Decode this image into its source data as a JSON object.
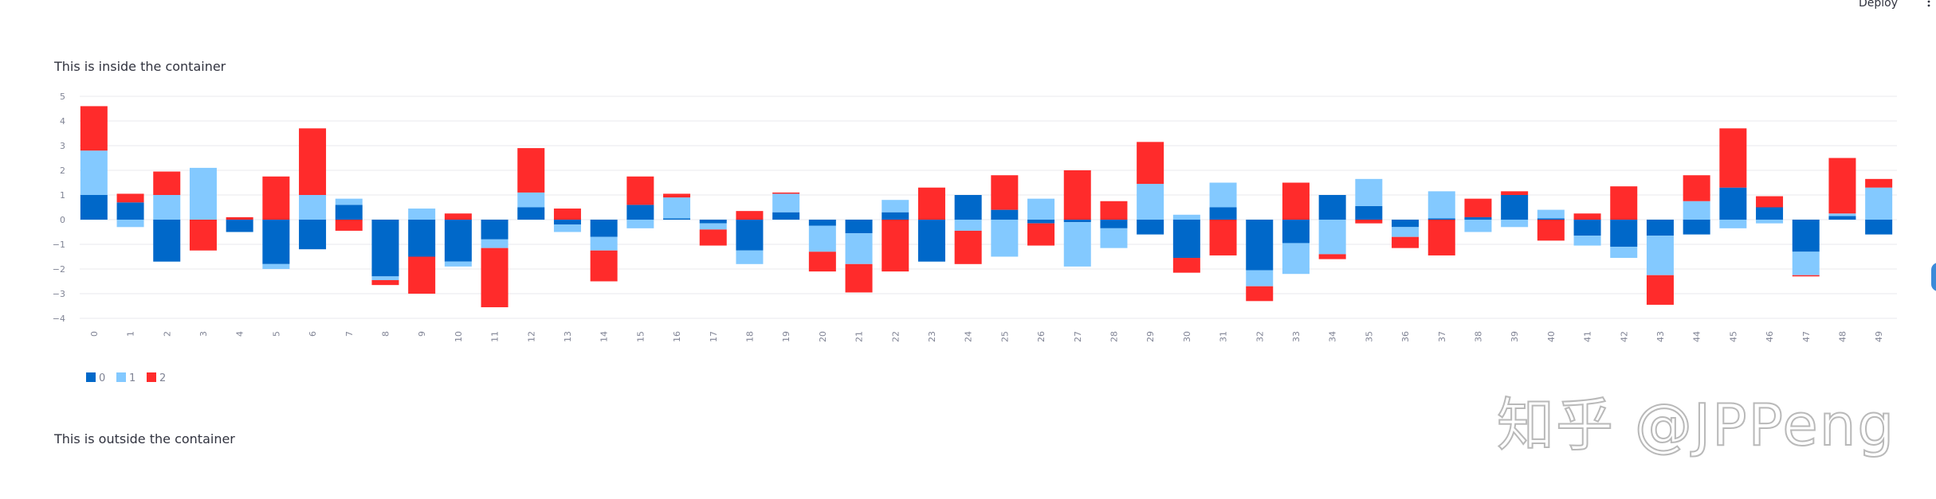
{
  "header": {
    "deploy_label": "Deploy"
  },
  "texts": {
    "inside": "This is inside the container",
    "outside": "This is outside the container"
  },
  "watermark": "知乎 @JPPeng",
  "colors": {
    "series0": "#0068c9",
    "series1": "#83c9ff",
    "series2": "#ff2b2b",
    "grid": "#eaeaee",
    "text": "#31333f",
    "tick": "#808495"
  },
  "chart_data": {
    "type": "bar",
    "stacked": true,
    "categories": [
      "0",
      "1",
      "2",
      "3",
      "4",
      "5",
      "6",
      "7",
      "8",
      "9",
      "10",
      "11",
      "12",
      "13",
      "14",
      "15",
      "16",
      "17",
      "18",
      "19",
      "20",
      "21",
      "22",
      "23",
      "24",
      "25",
      "26",
      "27",
      "28",
      "29",
      "30",
      "31",
      "32",
      "33",
      "34",
      "35",
      "36",
      "37",
      "38",
      "39",
      "40",
      "41",
      "42",
      "43",
      "44",
      "45",
      "46",
      "47",
      "48",
      "49"
    ],
    "y_ticks": [
      5,
      4,
      3,
      2,
      1,
      0,
      -1,
      -2,
      -3,
      -4
    ],
    "ylim": [
      -4,
      5
    ],
    "grid": true,
    "legend_position": "bottom-left",
    "series": [
      {
        "name": "0",
        "color": "#0068c9",
        "values": [
          1.0,
          0.7,
          -1.7,
          0.0,
          -0.5,
          -1.8,
          -1.2,
          0.6,
          -2.3,
          -1.5,
          -1.7,
          -0.8,
          0.5,
          -0.2,
          -0.7,
          0.6,
          0.05,
          -0.15,
          -1.25,
          0.3,
          -0.25,
          -0.55,
          0.3,
          -1.7,
          1.0,
          0.4,
          -0.15,
          -0.1,
          -0.35,
          -0.6,
          -1.55,
          0.5,
          -2.05,
          -0.95,
          1.0,
          0.55,
          -0.3,
          0.05,
          0.1,
          1.0,
          0.05,
          -0.65,
          -1.1,
          -0.65,
          -0.6,
          1.3,
          0.5,
          -1.3,
          0.15,
          -0.6
        ]
      },
      {
        "name": "1",
        "color": "#83c9ff",
        "values": [
          1.8,
          -0.3,
          1.0,
          2.1,
          0.0,
          -0.2,
          1.0,
          0.25,
          -0.15,
          0.45,
          -0.2,
          -0.35,
          0.6,
          -0.3,
          -0.55,
          -0.35,
          0.85,
          -0.25,
          -0.55,
          0.75,
          -1.05,
          -1.25,
          0.5,
          0.0,
          -0.45,
          -1.5,
          0.85,
          -1.8,
          -0.8,
          1.45,
          0.2,
          1.0,
          -0.65,
          -1.25,
          -1.4,
          1.1,
          -0.4,
          1.1,
          -0.5,
          -0.3,
          0.35,
          -0.4,
          -0.45,
          -1.6,
          0.75,
          -0.35,
          -0.15,
          -0.95,
          0.1,
          1.3
        ]
      },
      {
        "name": "2",
        "color": "#ff2b2b",
        "values": [
          1.8,
          0.35,
          0.95,
          -1.25,
          0.1,
          1.75,
          2.7,
          -0.45,
          -0.2,
          -1.5,
          0.25,
          -2.4,
          1.8,
          0.45,
          -1.25,
          1.15,
          0.15,
          -0.65,
          0.35,
          0.05,
          -0.8,
          -1.15,
          -2.1,
          1.3,
          -1.35,
          1.4,
          -0.9,
          2.0,
          0.75,
          1.7,
          -0.6,
          -1.45,
          -0.6,
          1.5,
          -0.2,
          -0.15,
          -0.45,
          -1.45,
          0.75,
          0.15,
          -0.85,
          0.25,
          1.35,
          -1.2,
          1.05,
          2.4,
          0.45,
          -0.05,
          2.25,
          0.35
        ]
      }
    ]
  }
}
